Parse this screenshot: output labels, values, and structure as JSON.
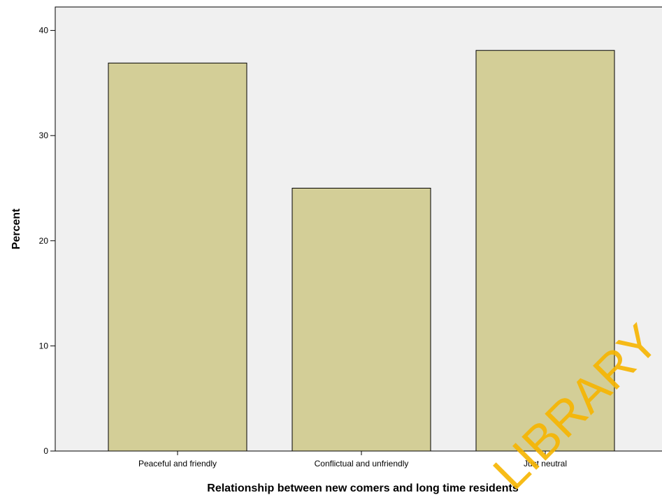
{
  "chart_data": {
    "type": "bar",
    "categories": [
      "Peaceful and friendly",
      "Conflictual and unfriendly",
      "Just neutral"
    ],
    "values": [
      36.9,
      25.0,
      38.1
    ],
    "xlabel": "Relationship between new comers and long time residents",
    "ylabel": "Percent",
    "yticks": [
      0,
      10,
      20,
      30,
      40
    ],
    "ylim": [
      0,
      42
    ],
    "grid": false,
    "colors": {
      "bar_fill": "#d3ce97",
      "bar_stroke": "#000000",
      "plot_background": "#f0f0f0"
    }
  },
  "watermark": {
    "text": "LIBRARY"
  }
}
